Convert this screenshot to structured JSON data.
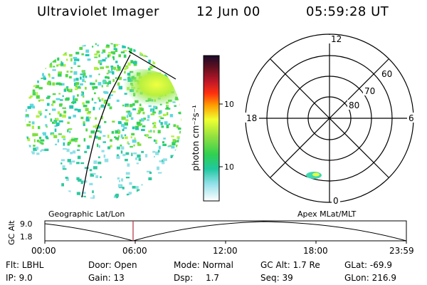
{
  "header": {
    "title": "Ultraviolet Imager",
    "date": "12 Jun 00",
    "time": "05:59:28 UT"
  },
  "colorbar": {
    "label": "photon cm⁻²s⁻¹",
    "ticks": [
      "100",
      "10"
    ]
  },
  "polar": {
    "mlt_labels": [
      "12",
      "18",
      "6",
      "0"
    ],
    "lat_labels": [
      "60",
      "70",
      "80"
    ]
  },
  "timeline": {
    "axis_title": "GC Alt",
    "y_ticks": [
      "9.0",
      "1.8"
    ],
    "left_caption": "Geographic Lat/Lon",
    "right_caption": "Apex MLat/MLT",
    "x_ticks": [
      "00:00",
      "06:00",
      "12:00",
      "18:00",
      "23:59"
    ],
    "marker_time": "05:59"
  },
  "status": {
    "row1": [
      {
        "label": "Flt:",
        "value": "LBHL"
      },
      {
        "label": "Door:",
        "value": "Open"
      },
      {
        "label": "Mode:",
        "value": "Normal"
      },
      {
        "label": "GC Alt:",
        "value": "1.7 Re"
      },
      {
        "label": "GLat:",
        "value": "-69.9"
      }
    ],
    "row2": [
      {
        "label": "IP:",
        "value": "9.0"
      },
      {
        "label": "Gain:",
        "value": "13"
      },
      {
        "label": "Dsp:",
        "value": "1.7"
      },
      {
        "label": "Seq:",
        "value": "39"
      },
      {
        "label": "GLon:",
        "value": "216.9"
      }
    ]
  },
  "colors": {
    "marker": "#b03040",
    "foreground": "#000000"
  }
}
